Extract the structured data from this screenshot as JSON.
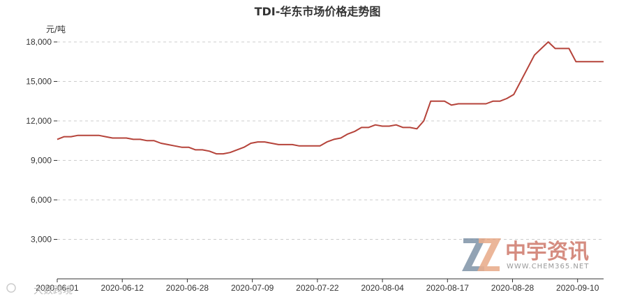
{
  "chart_data": {
    "type": "line",
    "title": "TDI-华东市场价格走势图",
    "ylabel": "元/吨",
    "xlabel": "",
    "ylim": [
      0,
      18000
    ],
    "y_ticks": [
      "3,000",
      "6,000",
      "9,000",
      "12,000",
      "15,000",
      "18,000"
    ],
    "y_tick_values": [
      3000,
      6000,
      9000,
      12000,
      15000,
      18000
    ],
    "x_ticks": [
      "2020-06-01",
      "2020-06-12",
      "2020-06-28",
      "2020-07-09",
      "2020-07-22",
      "2020-08-04",
      "2020-08-17",
      "2020-08-28",
      "2020-09-10"
    ],
    "grid": true,
    "line_color": "#b5433a",
    "series": [
      {
        "values": [
          10600,
          10800,
          10800,
          10900,
          10900,
          10900,
          10900,
          10800,
          10700,
          10700,
          10700,
          10600,
          10600,
          10500,
          10500,
          10300,
          10200,
          10100,
          10000,
          10000,
          9800,
          9800,
          9700,
          9500,
          9500,
          9600,
          9800,
          10000,
          10300,
          10400,
          10400,
          10300,
          10200,
          10200,
          10200,
          10100,
          10100,
          10100,
          10100,
          10400,
          10600,
          10700,
          11000,
          11200,
          11500,
          11500,
          11700,
          11600,
          11600,
          11700,
          11500,
          11500,
          11400,
          12000,
          13500,
          13500,
          13500,
          13200,
          13300,
          13300,
          13300,
          13300,
          13300,
          13500,
          13500,
          13700,
          14000,
          15000,
          16000,
          17000,
          17500,
          18000,
          17500,
          17500,
          17500,
          16500,
          16500,
          16500,
          16500,
          16500
        ]
      }
    ]
  },
  "watermark": {
    "brand_text": "中宇资讯",
    "url_text": "WWW.CHEM365.NET",
    "corner_text": "大数跨境"
  }
}
